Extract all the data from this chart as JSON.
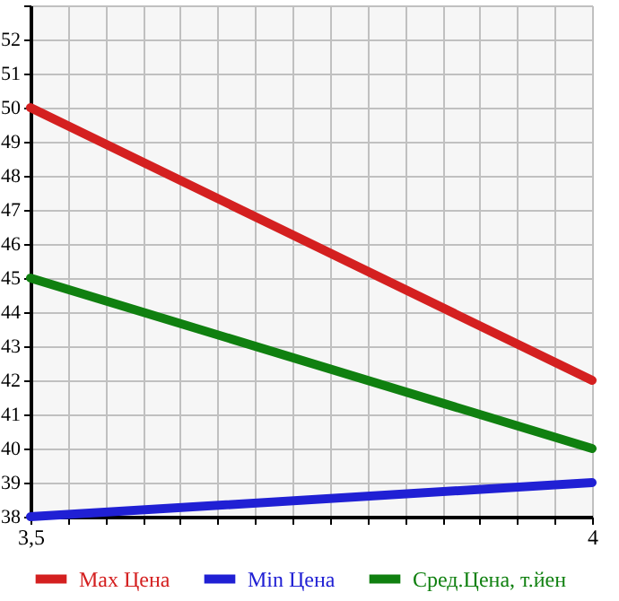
{
  "chart_data": {
    "type": "line",
    "x": [
      3.5,
      4
    ],
    "series": [
      {
        "name": "Max Цена",
        "color": "#d42020",
        "values": [
          50,
          42
        ]
      },
      {
        "name": "Min Цена",
        "color": "#2020d4",
        "values": [
          38,
          39
        ]
      },
      {
        "name": "Сред.Цена, т.йен",
        "color": "#108010",
        "values": [
          45,
          40
        ]
      }
    ],
    "xlim": [
      3.5,
      4
    ],
    "xticks": [
      {
        "value": 3.5,
        "label": "3,5"
      },
      {
        "value": 3.5333,
        "label": null
      },
      {
        "value": 3.5667,
        "label": null
      },
      {
        "value": 3.6,
        "label": null
      },
      {
        "value": 3.6333,
        "label": null
      },
      {
        "value": 3.6667,
        "label": null
      },
      {
        "value": 3.7,
        "label": null
      },
      {
        "value": 3.7333,
        "label": null
      },
      {
        "value": 3.7667,
        "label": null
      },
      {
        "value": 3.8,
        "label": null
      },
      {
        "value": 3.8333,
        "label": null
      },
      {
        "value": 3.8667,
        "label": null
      },
      {
        "value": 3.9,
        "label": null
      },
      {
        "value": 3.9333,
        "label": null
      },
      {
        "value": 3.9667,
        "label": null
      },
      {
        "value": 4,
        "label": "4"
      }
    ],
    "ylim": [
      38,
      53
    ],
    "yticks": [
      38,
      39,
      40,
      41,
      42,
      43,
      44,
      45,
      46,
      47,
      48,
      49,
      50,
      51,
      52,
      {
        "value": 53,
        "label": null
      }
    ],
    "grid": true,
    "legend": "bottom",
    "marker": "none",
    "line_style": "solid"
  }
}
